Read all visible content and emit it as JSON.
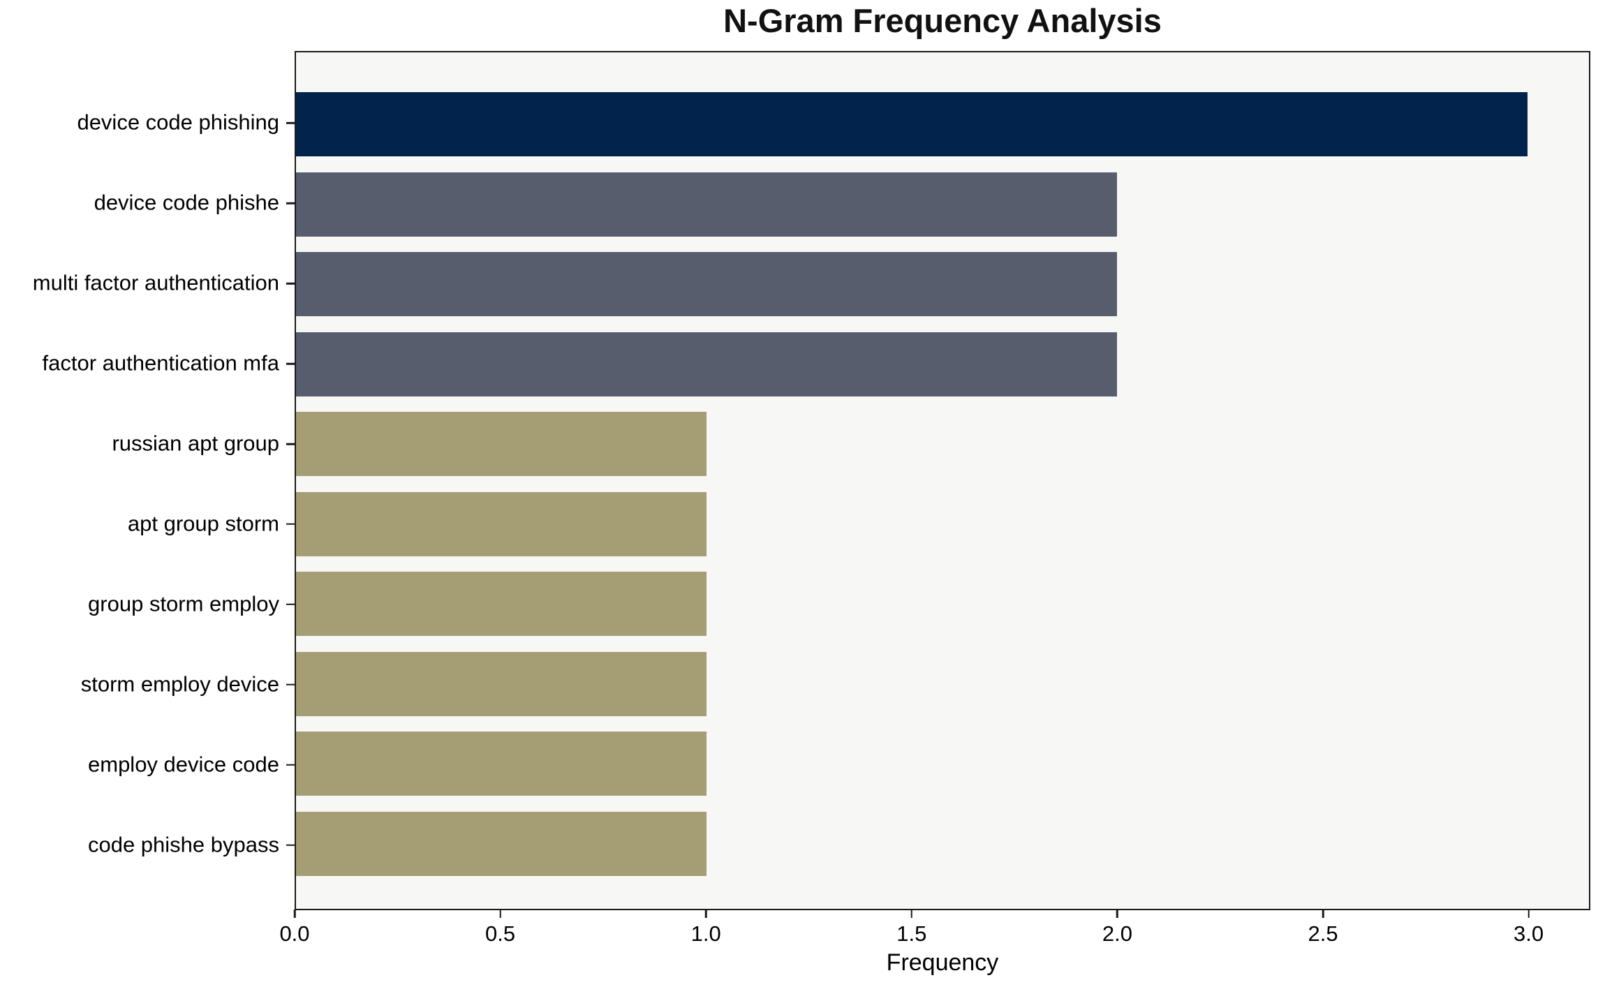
{
  "figure": {
    "background": "#ffffff",
    "text_color": "#000000"
  },
  "chart_data": {
    "type": "bar",
    "orientation": "horizontal",
    "title": "N-Gram Frequency Analysis",
    "xlabel": "Frequency",
    "ylabel": "",
    "categories": [
      "device code phishing",
      "device code phishe",
      "multi factor authentication",
      "factor authentication mfa",
      "russian apt group",
      "apt group storm",
      "group storm employ",
      "storm employ device",
      "employ device code",
      "code phishe bypass"
    ],
    "values": [
      3,
      2,
      2,
      2,
      1,
      1,
      1,
      1,
      1,
      1
    ],
    "bar_colors": [
      "#02234c",
      "#575d6c",
      "#575d6c",
      "#575d6c",
      "#a59d73",
      "#a59d73",
      "#a59d73",
      "#a59d73",
      "#a59d73",
      "#a59d73"
    ],
    "xlim": [
      0,
      3.15
    ],
    "xticks": {
      "values": [
        0,
        0.5,
        1,
        1.5,
        2,
        2.5,
        3
      ],
      "labels": [
        "0.0",
        "0.5",
        "1.0",
        "1.5",
        "2.0",
        "2.5",
        "3.0"
      ]
    },
    "grid": false,
    "legend": null,
    "plot_background": "#f7f7f5",
    "axis_color": "#1a1a1a"
  }
}
